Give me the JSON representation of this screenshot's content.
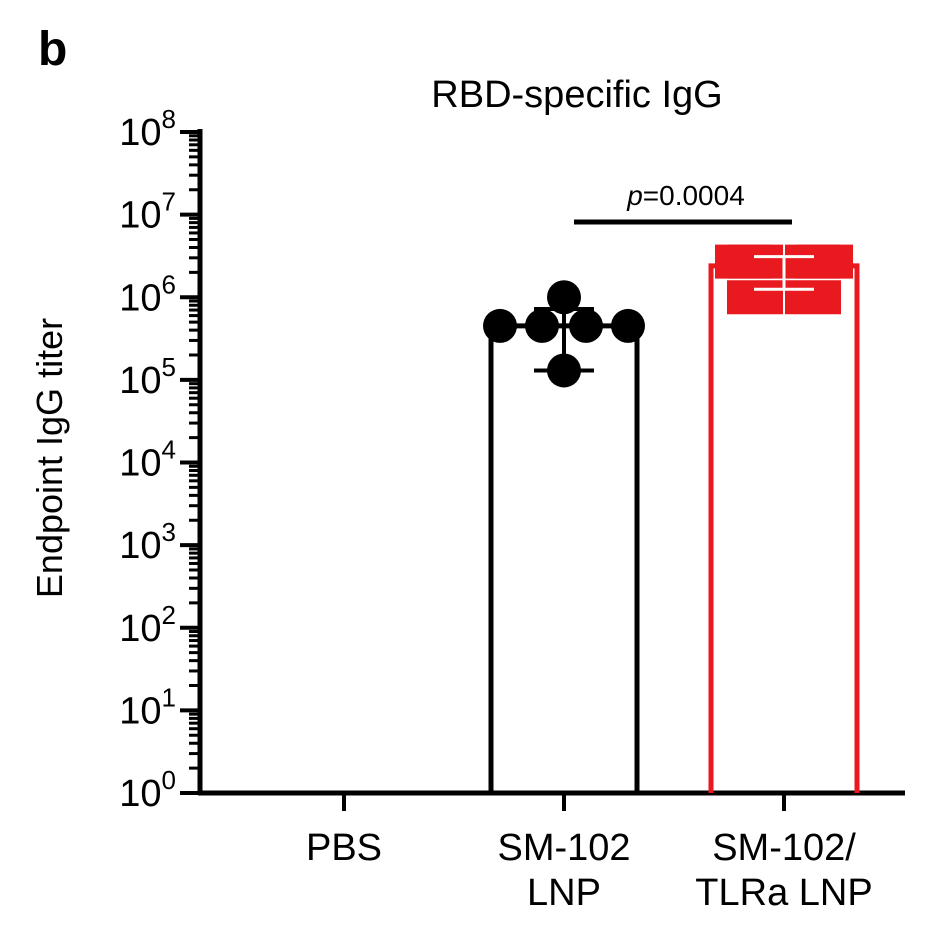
{
  "panel_label": "b",
  "chart_data": {
    "type": "bar",
    "title": "RBD-specific IgG",
    "ylabel": "Endpoint IgG titer",
    "xlabel": "",
    "yscale": "log",
    "ylim": [
      1,
      100000000
    ],
    "y_tick_base": "10",
    "y_tick_exponents": [
      "0",
      "1",
      "2",
      "3",
      "4",
      "5",
      "6",
      "7",
      "8"
    ],
    "grid": false,
    "categories": [
      {
        "name": "PBS",
        "lines": [
          "PBS"
        ]
      },
      {
        "name": "SM-102 LNP",
        "lines": [
          "SM-102",
          "LNP"
        ]
      },
      {
        "name": "SM-102/TLRa LNP",
        "lines": [
          "SM-102/",
          "TLRa LNP"
        ]
      }
    ],
    "values": [
      null,
      450000,
      2400000
    ],
    "error": [
      null,
      {
        "low": 130000,
        "high": 720000
      },
      {
        "low": 1250000,
        "high": 3100000
      }
    ],
    "points": [
      [],
      [
        450000,
        450000,
        450000,
        450000,
        1000000,
        130000
      ],
      [
        2700000,
        2700000,
        2700000,
        2700000,
        1000000,
        1000000
      ]
    ],
    "colors": [
      "#000000",
      "#000000",
      "#e8191f"
    ],
    "markers": [
      "circle",
      "circle",
      "square"
    ],
    "annotation": {
      "label_italic": "p",
      "label_rest": "=0.0004",
      "between": [
        1,
        2
      ]
    }
  }
}
